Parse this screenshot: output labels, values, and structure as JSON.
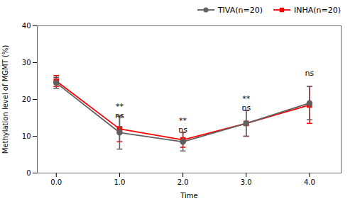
{
  "chart_data": {
    "type": "line",
    "x": [
      0,
      1,
      2,
      3,
      4
    ],
    "xlabel": "Time",
    "ylabel": "Methylation level of MGMT (%)",
    "xlim": [
      -0.3,
      4.5
    ],
    "xticks": [
      0,
      1,
      2,
      3,
      4
    ],
    "ylim": [
      0,
      40
    ],
    "yticks": [
      0,
      10,
      20,
      30,
      40
    ],
    "legend": "upper right",
    "series": [
      {
        "name": "TIVA(n=20)",
        "color": "#606060",
        "marker": "circle",
        "values": [
          24.5,
          11.0,
          8.5,
          13.5,
          19.0
        ],
        "error": [
          1.5,
          4.5,
          2.5,
          3.5,
          4.5
        ]
      },
      {
        "name": "INHA(n=20)",
        "color": "#ff0000",
        "marker": "square",
        "values": [
          25.0,
          12.0,
          9.0,
          13.5,
          18.5
        ],
        "error": [
          1.5,
          3.5,
          2.0,
          3.5,
          5.0
        ]
      }
    ],
    "annotations": [
      {
        "x": 1,
        "y": 17.5,
        "text": "**"
      },
      {
        "x": 1,
        "y": 15.0,
        "text": "ns"
      },
      {
        "x": 2,
        "y": 13.5,
        "text": "**"
      },
      {
        "x": 2,
        "y": 11.0,
        "text": "ns"
      },
      {
        "x": 3,
        "y": 19.5,
        "text": "**"
      },
      {
        "x": 3,
        "y": 17.0,
        "text": "ns"
      },
      {
        "x": 4,
        "y": 26.5,
        "text": "ns"
      }
    ]
  }
}
